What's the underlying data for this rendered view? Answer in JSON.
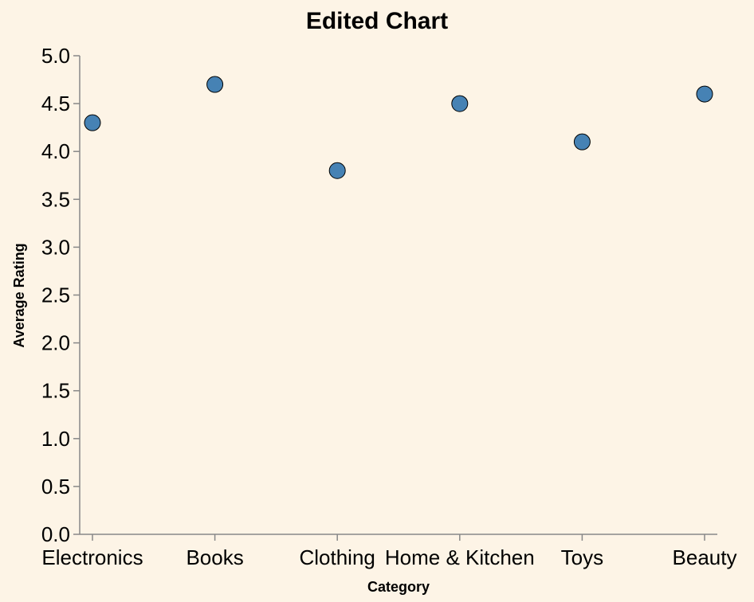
{
  "chart_data": {
    "type": "scatter",
    "title": "Edited Chart",
    "xlabel": "Category",
    "ylabel": "Average Rating",
    "categories": [
      "Electronics",
      "Books",
      "Clothing",
      "Home & Kitchen",
      "Toys",
      "Beauty"
    ],
    "values": [
      4.3,
      4.7,
      3.8,
      4.5,
      4.1,
      4.6
    ],
    "y_ticks": [
      "0.0",
      "0.5",
      "1.0",
      "1.5",
      "2.0",
      "2.5",
      "3.0",
      "3.5",
      "4.0",
      "4.5",
      "5.0"
    ],
    "ylim": [
      0,
      5
    ],
    "grid": false,
    "point_color": "#4682b4",
    "background": "#fdf4e6"
  }
}
